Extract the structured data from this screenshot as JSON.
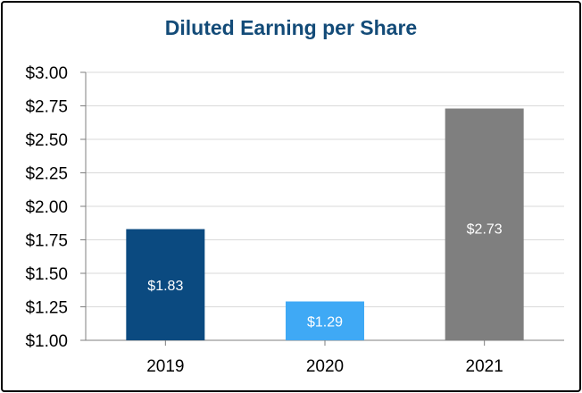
{
  "chart_data": {
    "type": "bar",
    "title": "Diluted Earning per Share",
    "categories": [
      "2019",
      "2020",
      "2021"
    ],
    "values": [
      1.83,
      1.29,
      2.73
    ],
    "data_labels": [
      "$1.83",
      "$1.29",
      "$2.73"
    ],
    "bar_colors": [
      "#0b4a80",
      "#3fa9f5",
      "#7f7f7f"
    ],
    "title_color": "#134b78",
    "ylim": [
      1.0,
      3.0
    ],
    "yticks": [
      1.0,
      1.25,
      1.5,
      1.75,
      2.0,
      2.25,
      2.5,
      2.75,
      3.0
    ],
    "ytick_labels": [
      "$1.00",
      "$1.25",
      "$1.50",
      "$1.75",
      "$2.00",
      "$2.25",
      "$2.50",
      "$2.75",
      "$3.00"
    ],
    "xlabel": "",
    "ylabel": "",
    "grid": true,
    "legend": "none"
  }
}
